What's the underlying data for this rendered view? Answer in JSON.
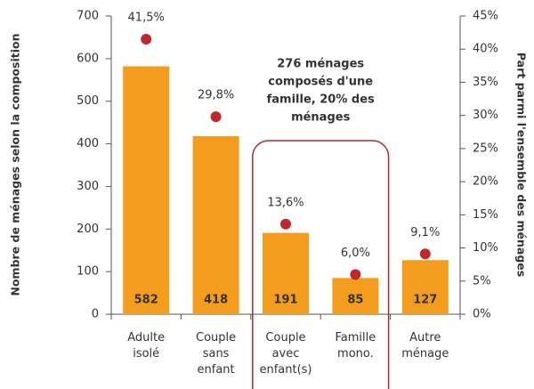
{
  "chart_data": {
    "type": "bar_dot",
    "categories": [
      "Adulte isolé",
      "Couple sans enfant",
      "Couple avec enfant(s)",
      "Famille mono.",
      "Autre ménage"
    ],
    "series": [
      {
        "values": [
          582,
          418,
          191,
          85,
          127
        ],
        "color": "#f39c1e"
      },
      {
        "values": [
          41.5,
          29.8,
          13.6,
          6.0,
          9.1
        ],
        "value_labels": [
          "41,5%",
          "29,8%",
          "13,6%",
          "6,0%",
          "9,1%"
        ],
        "color": "#c0282d",
        "axis": "y2"
      }
    ],
    "ylabel": "Nombre de ménages selon la composition",
    "y2label": "Part parmi l'ensemble des ménages",
    "ylim": [
      0,
      700
    ],
    "yticks": [
      0,
      100,
      200,
      300,
      400,
      500,
      600,
      700
    ],
    "y2lim": [
      0,
      45
    ],
    "y2ticks": [
      {
        "value": 0,
        "label": "0%"
      },
      {
        "value": 5,
        "label": "5%"
      },
      {
        "value": 10,
        "label": "10%"
      },
      {
        "value": 15,
        "label": "15%"
      },
      {
        "value": 20,
        "label": "20%"
      },
      {
        "value": 25,
        "label": "25%"
      },
      {
        "value": 30,
        "label": "30%"
      },
      {
        "value": 35,
        "label": "35%"
      },
      {
        "value": 40,
        "label": "40%"
      },
      {
        "value": 45,
        "label": "45%"
      }
    ],
    "annotation_lines": [
      "276 ménages",
      "composés d'une",
      "famille, 20% des",
      "ménages"
    ],
    "annotation_color": "#b3282e"
  }
}
